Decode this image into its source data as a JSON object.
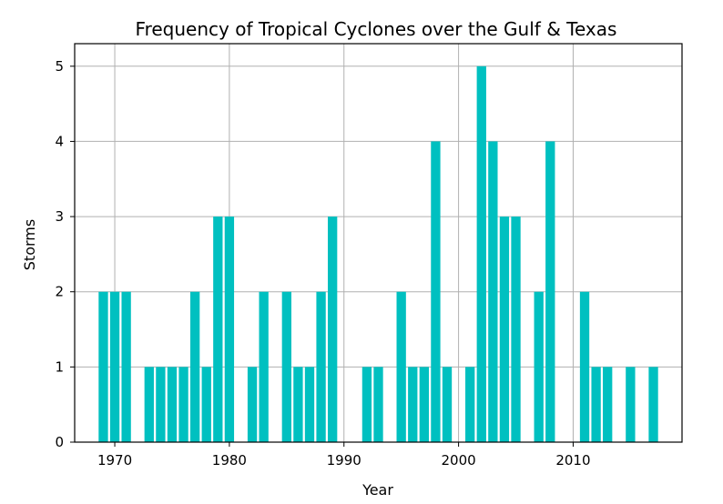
{
  "chart_data": {
    "type": "bar",
    "title": "Frequency of Tropical Cyclones over the Gulf & Texas",
    "xlabel": "Year",
    "ylabel": "Storms",
    "xlim": [
      1966.5,
      2019.5
    ],
    "ylim": [
      0,
      5.3
    ],
    "grid": true,
    "bar_color": "#00c0c0",
    "x_ticks": [
      1970,
      1980,
      1990,
      2000,
      2010
    ],
    "y_ticks": [
      0,
      1,
      2,
      3,
      4,
      5
    ],
    "x": [
      1969,
      1970,
      1971,
      1973,
      1974,
      1975,
      1976,
      1977,
      1978,
      1979,
      1980,
      1982,
      1983,
      1985,
      1986,
      1987,
      1988,
      1989,
      1992,
      1993,
      1995,
      1996,
      1997,
      1998,
      1999,
      2001,
      2002,
      2003,
      2004,
      2005,
      2007,
      2008,
      2011,
      2012,
      2013,
      2015,
      2017
    ],
    "values": [
      2,
      2,
      2,
      1,
      1,
      1,
      1,
      2,
      1,
      3,
      3,
      1,
      2,
      2,
      1,
      1,
      2,
      3,
      1,
      1,
      2,
      1,
      1,
      4,
      1,
      1,
      5,
      4,
      3,
      3,
      2,
      4,
      2,
      1,
      1,
      1,
      1
    ]
  }
}
